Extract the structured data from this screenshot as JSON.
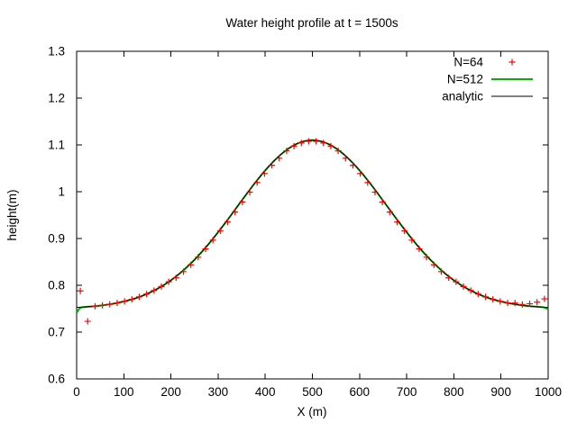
{
  "chart_data": {
    "type": "line",
    "title": "Water height profile at t = 1500s",
    "xlabel": "X (m)",
    "ylabel": "height(m)",
    "xlim": [
      0,
      1000
    ],
    "ylim": [
      0.6,
      1.3
    ],
    "xticks": [
      0,
      100,
      200,
      300,
      400,
      500,
      600,
      700,
      800,
      900,
      1000
    ],
    "yticks": [
      0.6,
      0.7,
      0.8,
      0.9,
      1.0,
      1.1,
      1.2,
      1.3
    ],
    "ytick_labels": [
      "0.6",
      "0.7",
      "0.8",
      "0.9",
      "1",
      "1.1",
      "1.2",
      "1.3"
    ],
    "grid": false,
    "legend_position": "top-right",
    "frame_color": "#000000",
    "background": "#ffffff",
    "series": [
      {
        "name": "N=64",
        "style": "points",
        "marker": "plus",
        "color": "#ff0000",
        "x": [
          7.8,
          23.4,
          39.1,
          54.7,
          70.3,
          85.9,
          101.6,
          117.2,
          132.8,
          148.4,
          164.1,
          179.7,
          195.3,
          210.9,
          226.6,
          242.2,
          257.8,
          273.4,
          289.1,
          304.7,
          320.3,
          335.9,
          351.6,
          367.2,
          382.8,
          398.4,
          414.1,
          429.7,
          445.3,
          460.9,
          476.6,
          492.2,
          507.8,
          523.4,
          539.1,
          554.7,
          570.3,
          585.9,
          601.6,
          617.2,
          632.8,
          648.4,
          664.1,
          679.7,
          695.3,
          710.9,
          726.6,
          742.2,
          757.8,
          773.4,
          789.1,
          804.7,
          820.3,
          835.9,
          851.6,
          867.2,
          882.8,
          898.4,
          914.1,
          929.7,
          945.3,
          960.9,
          976.6,
          992.2
        ],
        "y": [
          0.788,
          0.723,
          0.7554,
          0.7572,
          0.7594,
          0.7622,
          0.7656,
          0.7699,
          0.7752,
          0.7813,
          0.7887,
          0.7974,
          0.8075,
          0.8161,
          0.8292,
          0.8438,
          0.86,
          0.8776,
          0.8965,
          0.9165,
          0.9352,
          0.9565,
          0.978,
          0.9991,
          1.0195,
          1.0387,
          1.0562,
          1.0715,
          1.0873,
          1.0973,
          1.1041,
          1.1076,
          1.1076,
          1.1041,
          1.0973,
          1.0873,
          1.0715,
          1.0562,
          1.0387,
          1.0195,
          0.9991,
          0.978,
          0.9565,
          0.9352,
          0.9165,
          0.8965,
          0.8776,
          0.86,
          0.8438,
          0.8292,
          0.8161,
          0.8075,
          0.7974,
          0.7887,
          0.7813,
          0.7752,
          0.7699,
          0.7656,
          0.7622,
          0.762,
          0.759,
          0.7605,
          0.764,
          0.771
        ]
      },
      {
        "name": "N=512",
        "style": "line",
        "color": "#00b400",
        "stroke_width": 2,
        "x": [
          0,
          2,
          5,
          10,
          25,
          50,
          75,
          100,
          125,
          150,
          175,
          200,
          225,
          250,
          275,
          300,
          325,
          350,
          375,
          400,
          425,
          450,
          475,
          500,
          525,
          550,
          575,
          600,
          625,
          650,
          675,
          700,
          725,
          750,
          775,
          800,
          825,
          850,
          875,
          900,
          925,
          950,
          975,
          990,
          995,
          1000
        ],
        "y": [
          0.742,
          0.744,
          0.749,
          0.7527,
          0.7542,
          0.7566,
          0.7602,
          0.7653,
          0.7724,
          0.782,
          0.7947,
          0.8108,
          0.8308,
          0.8547,
          0.8824,
          0.9134,
          0.9466,
          0.9808,
          1.0144,
          1.0455,
          1.0721,
          1.0927,
          1.1056,
          1.11,
          1.1056,
          1.0927,
          1.0721,
          1.0455,
          1.0144,
          0.9808,
          0.9466,
          0.9134,
          0.8824,
          0.8547,
          0.8308,
          0.8108,
          0.7947,
          0.782,
          0.7724,
          0.7653,
          0.7602,
          0.7566,
          0.7542,
          0.7528,
          0.751,
          0.749
        ]
      },
      {
        "name": "analytic",
        "style": "line",
        "color": "#000000",
        "stroke_width": 1,
        "x": [
          0,
          25,
          50,
          75,
          100,
          125,
          150,
          175,
          200,
          225,
          250,
          275,
          300,
          325,
          350,
          375,
          400,
          425,
          450,
          475,
          500,
          525,
          550,
          575,
          600,
          625,
          650,
          675,
          700,
          725,
          750,
          775,
          800,
          825,
          850,
          875,
          900,
          925,
          950,
          975,
          1000
        ],
        "y": [
          0.7526,
          0.7542,
          0.7566,
          0.7602,
          0.7653,
          0.7724,
          0.782,
          0.7947,
          0.8108,
          0.8308,
          0.8547,
          0.8824,
          0.9134,
          0.9466,
          0.9808,
          1.0144,
          1.0455,
          1.0721,
          1.0927,
          1.1056,
          1.11,
          1.1056,
          1.0927,
          1.0721,
          1.0455,
          1.0144,
          0.9808,
          0.9466,
          0.9134,
          0.8824,
          0.8547,
          0.8308,
          0.8108,
          0.7947,
          0.782,
          0.7724,
          0.7653,
          0.7602,
          0.7566,
          0.7542,
          0.7526
        ]
      }
    ]
  }
}
